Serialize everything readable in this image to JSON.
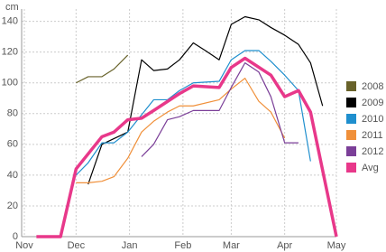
{
  "chart_data": {
    "type": "line",
    "y_axis_label": "cm",
    "xlim": [
      0,
      181
    ],
    "ylim": [
      0,
      148
    ],
    "xticks": [
      {
        "value": 0,
        "label": "Nov"
      },
      {
        "value": 30,
        "label": "Dec"
      },
      {
        "value": 61,
        "label": "Jan"
      },
      {
        "value": 92,
        "label": "Feb"
      },
      {
        "value": 120,
        "label": "Mar"
      },
      {
        "value": 151,
        "label": "Apr"
      },
      {
        "value": 181,
        "label": "May"
      }
    ],
    "yticks": [
      0,
      20,
      40,
      60,
      80,
      100,
      120,
      140
    ],
    "grid": true,
    "legend": "right",
    "series": [
      {
        "name": "2008",
        "color": "#68622a",
        "x": [
          30,
          37,
          45,
          52,
          60
        ],
        "values": [
          100,
          104,
          104,
          109,
          118
        ]
      },
      {
        "name": "2009",
        "color": "#000000",
        "x": [
          37,
          45,
          60,
          68,
          75,
          83,
          90,
          98,
          105,
          113,
          120,
          128,
          136,
          143,
          151,
          159,
          166,
          173
        ],
        "values": [
          34,
          60,
          68,
          115,
          108,
          109,
          115,
          126,
          121,
          115,
          138,
          143,
          141,
          136,
          131,
          125,
          113,
          85
        ]
      },
      {
        "name": "2010",
        "color": "#1f8fce",
        "x": [
          30,
          37,
          45,
          52,
          60,
          75,
          83,
          90,
          98,
          113,
          120,
          128,
          136,
          143,
          151,
          159,
          166
        ],
        "values": [
          40,
          48,
          61,
          61,
          68,
          89,
          89,
          95,
          100,
          101,
          115,
          121,
          121,
          114,
          105,
          95,
          49
        ]
      },
      {
        "name": "2011",
        "color": "#f0903a",
        "x": [
          30,
          37,
          45,
          52,
          60,
          68,
          75,
          83,
          90,
          98,
          113,
          120,
          128,
          136,
          143,
          151
        ],
        "values": [
          35,
          35,
          36,
          39,
          51,
          68,
          75,
          81,
          85,
          85,
          89,
          96,
          103,
          88,
          81,
          64
        ]
      },
      {
        "name": "2012",
        "color": "#7b3f98",
        "x": [
          68,
          75,
          83,
          90,
          98,
          113,
          120,
          128,
          136,
          143,
          151,
          159
        ],
        "values": [
          52,
          60,
          76,
          78,
          82,
          82,
          97,
          113,
          107,
          91,
          61,
          61
        ]
      },
      {
        "name": "Avg",
        "color": "#e8388a",
        "x": [
          7,
          21,
          30,
          45,
          52,
          60,
          68,
          75,
          90,
          98,
          113,
          120,
          128,
          143,
          151,
          159,
          166,
          181
        ],
        "values": [
          0,
          0,
          44,
          65,
          68,
          76,
          77,
          82,
          93,
          98,
          97,
          110,
          116,
          105,
          91,
          95,
          81,
          0
        ]
      }
    ]
  }
}
